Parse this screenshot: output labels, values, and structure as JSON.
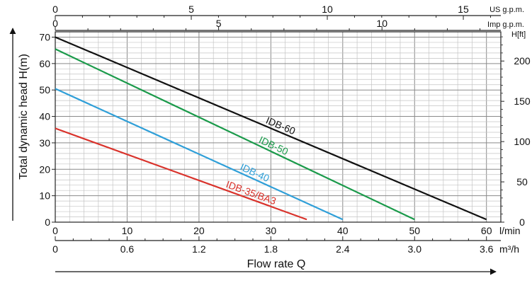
{
  "chart_data": {
    "type": "line",
    "ylabel": "Total dynamic head H(m)",
    "xlabel": "Flow rate Q",
    "x_lmin": {
      "unit": "l/min",
      "ticks": [
        0,
        10,
        20,
        30,
        40,
        50,
        60
      ],
      "range": [
        0,
        62
      ]
    },
    "x_m3h": {
      "unit": "m³/h",
      "ticks": [
        "0",
        "0.6",
        "1.2",
        "1.8",
        "2.4",
        "3.0",
        "3.6"
      ]
    },
    "x_usgpm": {
      "unit": "US g.p.m.",
      "ticks": [
        0,
        5,
        10,
        15
      ]
    },
    "x_impgpm": {
      "unit": "Imp g.p.m.",
      "ticks": [
        0,
        5,
        10
      ]
    },
    "y_m": {
      "unit": "",
      "ticks": [
        0,
        10,
        20,
        30,
        40,
        50,
        60,
        70
      ],
      "range": [
        0,
        72
      ]
    },
    "y_ft": {
      "unit": "H[ft]",
      "ticks": [
        0,
        50,
        100,
        150,
        200
      ]
    },
    "grid": true,
    "series": [
      {
        "name": "IDB-60",
        "color": "#111111",
        "x": [
          0,
          60
        ],
        "y": [
          70,
          1
        ]
      },
      {
        "name": "IDB-50",
        "color": "#1a9a4a",
        "x": [
          0,
          50
        ],
        "y": [
          65.5,
          1
        ]
      },
      {
        "name": "IDB-40",
        "color": "#2f9fd8",
        "x": [
          0,
          40
        ],
        "y": [
          50.5,
          1
        ]
      },
      {
        "name": "IDB-35/BA3",
        "color": "#d9322b",
        "x": [
          0,
          35
        ],
        "y": [
          35.5,
          1
        ]
      }
    ]
  }
}
